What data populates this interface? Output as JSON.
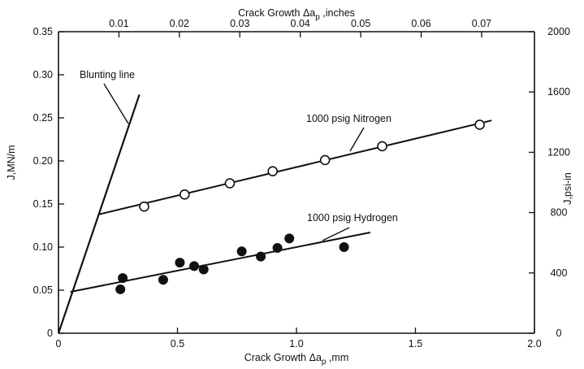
{
  "chart_data": {
    "type": "scatter",
    "x_axis_bottom": {
      "label": "Crack Growth Δa",
      "label_sub": "p",
      "label_suffix": " ,mm",
      "range": [
        0,
        2.0
      ],
      "ticks": [
        0,
        0.5,
        1.0,
        1.5,
        2.0
      ],
      "tick_labels": [
        "0",
        "0.5",
        "1.0",
        "1.5",
        "2.0"
      ]
    },
    "x_axis_top": {
      "label": "Crack Growth Δa",
      "label_sub": "p",
      "label_suffix": " ,inches",
      "range": [
        0,
        0.07874
      ],
      "ticks": [
        0.01,
        0.02,
        0.03,
        0.04,
        0.05,
        0.06,
        0.07
      ],
      "tick_labels": [
        "0.01",
        "0.02",
        "0.03",
        "0.04",
        "0.05",
        "0.06",
        "0.07"
      ]
    },
    "y_axis_left": {
      "label": "J,MN/m",
      "range": [
        0,
        0.35
      ],
      "ticks": [
        0,
        0.05,
        0.1,
        0.15,
        0.2,
        0.25,
        0.3,
        0.35
      ],
      "tick_labels": [
        "0",
        "0.05",
        "0.10",
        "0.15",
        "0.20",
        "0.25",
        "0.30",
        "0.35"
      ]
    },
    "y_axis_right": {
      "label": "J,psi-in",
      "range": [
        0,
        2000
      ],
      "ticks": [
        0,
        400,
        800,
        1200,
        1600,
        2000
      ],
      "tick_labels": [
        "0",
        "400",
        "800",
        "1200",
        "1600",
        "2000"
      ]
    },
    "series": [
      {
        "name": "1000 psig Nitrogen",
        "marker": "open-circle",
        "x": [
          0.36,
          0.53,
          0.72,
          0.9,
          1.12,
          1.36,
          1.77
        ],
        "y": [
          0.147,
          0.161,
          0.174,
          0.188,
          0.201,
          0.217,
          0.242
        ],
        "fit_line": {
          "x": [
            0.17,
            1.82
          ],
          "y": [
            0.138,
            0.247
          ]
        }
      },
      {
        "name": "1000 psig Hydrogen",
        "marker": "filled-circle",
        "x": [
          0.26,
          0.27,
          0.44,
          0.51,
          0.57,
          0.61,
          0.77,
          0.85,
          0.92,
          0.97,
          1.2
        ],
        "y": [
          0.051,
          0.064,
          0.062,
          0.082,
          0.078,
          0.074,
          0.095,
          0.089,
          0.099,
          0.11,
          0.1
        ],
        "fit_line": {
          "x": [
            0.05,
            1.31
          ],
          "y": [
            0.048,
            0.117
          ]
        }
      }
    ],
    "blunting_line": {
      "name": "Blunting line",
      "x": [
        0,
        0.34
      ],
      "y": [
        0,
        0.277
      ]
    },
    "annotations": {
      "nitrogen": "1000 psig Nitrogen",
      "hydrogen": "1000 psig Hydrogen",
      "blunting": "Blunting line"
    },
    "grid": false,
    "legend": "none"
  }
}
